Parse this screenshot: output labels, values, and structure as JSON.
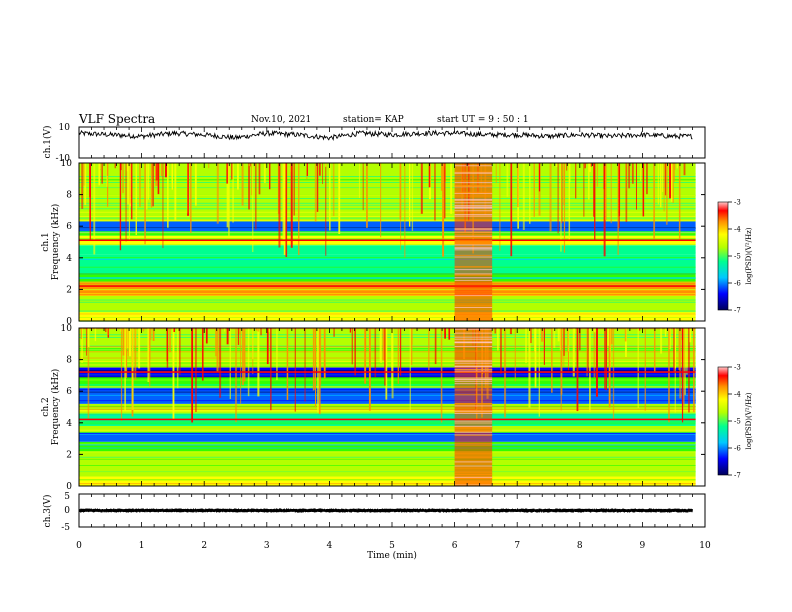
{
  "header": {
    "title": "VLF Spectra",
    "date": "Nov.10, 2021",
    "station": "station= KAP",
    "start": "start  UT =   9  : 50 : 1"
  },
  "chart_data": [
    {
      "type": "line",
      "panel": "ch1-waveform",
      "ylabel": "ch.1(V)",
      "ylim": [
        -10,
        10
      ],
      "yticks": [
        "10",
        "-10"
      ],
      "xlim": [
        0,
        10
      ],
      "x_coverage_min": [
        0,
        9.8
      ],
      "description_of_trace": "noisy voltage trace fluctuating roughly between 1 and 9 V",
      "approx_samples": [
        {
          "x": 0.0,
          "y": 6
        },
        {
          "x": 0.5,
          "y": 5
        },
        {
          "x": 1.0,
          "y": 4
        },
        {
          "x": 1.5,
          "y": 6
        },
        {
          "x": 2.0,
          "y": 5
        },
        {
          "x": 2.5,
          "y": 3
        },
        {
          "x": 3.0,
          "y": 6
        },
        {
          "x": 3.5,
          "y": 5
        },
        {
          "x": 4.0,
          "y": 3
        },
        {
          "x": 4.5,
          "y": 6
        },
        {
          "x": 5.0,
          "y": 5
        },
        {
          "x": 5.5,
          "y": 6
        },
        {
          "x": 6.0,
          "y": 6
        },
        {
          "x": 6.5,
          "y": 5
        },
        {
          "x": 7.0,
          "y": 5
        },
        {
          "x": 7.5,
          "y": 4
        },
        {
          "x": 8.0,
          "y": 5
        },
        {
          "x": 8.5,
          "y": 4
        },
        {
          "x": 9.0,
          "y": 5
        },
        {
          "x": 9.5,
          "y": 4
        },
        {
          "x": 9.8,
          "y": 4
        }
      ]
    },
    {
      "type": "heatmap",
      "panel": "ch1-spectrogram",
      "ylabel_line1": "ch.1",
      "ylabel_line2": "Frequency  (kHz)",
      "ylim": [
        0,
        10
      ],
      "yticks": [
        "0",
        "2",
        "4",
        "6",
        "8",
        "10"
      ],
      "xlim": [
        0,
        10
      ],
      "colorbar": {
        "label": "log(PSD)(V²/Hz)",
        "range": [
          -7,
          -3
        ],
        "ticks": [
          "-3",
          "-4",
          "-5",
          "-6",
          "-7"
        ]
      },
      "bands_khz": [
        {
          "from": 0,
          "to": 0.6,
          "level": -4.2
        },
        {
          "from": 0.6,
          "to": 1.6,
          "level": -4.6
        },
        {
          "from": 1.6,
          "to": 2.5,
          "level": -4.0
        },
        {
          "from": 2.5,
          "to": 3.0,
          "level": -5.0
        },
        {
          "from": 3.0,
          "to": 4.2,
          "level": -5.6
        },
        {
          "from": 4.2,
          "to": 4.8,
          "level": -5.3
        },
        {
          "from": 4.8,
          "to": 5.4,
          "level": -4.3
        },
        {
          "from": 5.4,
          "to": 5.7,
          "level": -5.0
        },
        {
          "from": 5.7,
          "to": 6.3,
          "level": -6.2
        },
        {
          "from": 6.3,
          "to": 10,
          "level": -4.8
        }
      ],
      "lines_khz": [
        {
          "f": 2.2,
          "level": -3.3
        },
        {
          "f": 5.1,
          "level": -3.4
        }
      ],
      "burst_min": [
        6.0,
        6.6
      ]
    },
    {
      "type": "heatmap",
      "panel": "ch2-spectrogram",
      "ylabel_line1": "ch.2",
      "ylabel_line2": "Frequency  (kHz)",
      "ylim": [
        0,
        10
      ],
      "yticks": [
        "0",
        "2",
        "4",
        "6",
        "8",
        "10"
      ],
      "xlim": [
        0,
        10
      ],
      "colorbar": {
        "label": "log(PSD)(V²/Hz)",
        "range": [
          -7,
          -3
        ],
        "ticks": [
          "-3",
          "-4",
          "-5",
          "-6",
          "-7"
        ]
      },
      "bands_khz": [
        {
          "from": 0,
          "to": 0.6,
          "level": -4.3
        },
        {
          "from": 0.6,
          "to": 2.2,
          "level": -4.8
        },
        {
          "from": 2.2,
          "to": 2.8,
          "level": -5.2
        },
        {
          "from": 2.8,
          "to": 3.4,
          "level": -6.3
        },
        {
          "from": 3.4,
          "to": 3.8,
          "level": -4.6
        },
        {
          "from": 3.8,
          "to": 4.6,
          "level": -5.5
        },
        {
          "from": 4.6,
          "to": 5.2,
          "level": -4.4
        },
        {
          "from": 5.2,
          "to": 6.2,
          "level": -6.1
        },
        {
          "from": 6.2,
          "to": 6.9,
          "level": -5.0
        },
        {
          "from": 6.9,
          "to": 7.5,
          "level": -6.4
        },
        {
          "from": 7.5,
          "to": 10,
          "level": -4.6
        }
      ],
      "lines_khz": [
        {
          "f": 4.2,
          "level": -3.3
        },
        {
          "f": 7.2,
          "level": -3.5
        }
      ],
      "burst_min": [
        6.0,
        6.6
      ]
    },
    {
      "type": "line",
      "panel": "ch3-waveform",
      "ylabel": "ch.3(V)",
      "ylim": [
        -5,
        5
      ],
      "yticks": [
        "5",
        "0",
        "-5"
      ],
      "xlim": [
        0,
        10
      ],
      "x_coverage_min": [
        0,
        9.8
      ],
      "description_of_trace": "dense oscillation centred near 0 V with small amplitude",
      "center_value": 0.0,
      "amplitude": 0.6
    }
  ],
  "xaxis": {
    "label": "Time  (min)",
    "ticks": [
      "0",
      "1",
      "2",
      "3",
      "4",
      "5",
      "6",
      "7",
      "8",
      "9",
      "10"
    ]
  },
  "colors": {
    "colormap": [
      "#00005a",
      "#0000ff",
      "#0060ff",
      "#00c8ff",
      "#00ff90",
      "#30ff00",
      "#b4ff00",
      "#ffff00",
      "#ff9000",
      "#ff0000",
      "#ffc8c8"
    ]
  }
}
